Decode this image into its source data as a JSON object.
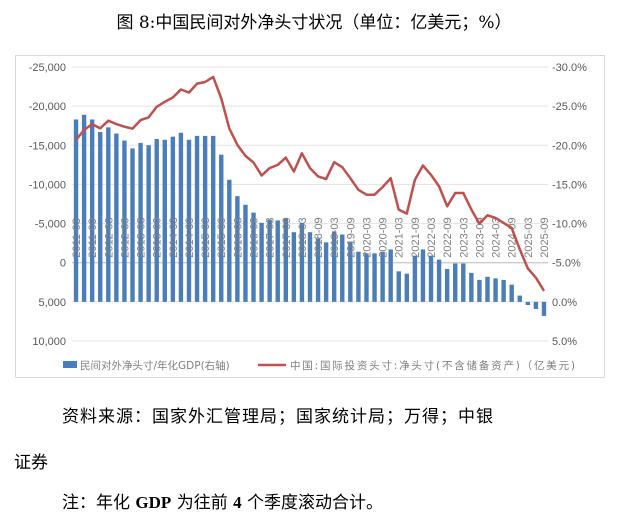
{
  "title": "图 8:中国民间对外净头寸状况（单位：亿美元；%）",
  "source": "资料来源：国家外汇管理局；国家统计局；万得；中银",
  "source_cont": "证券",
  "note": {
    "prefix": "注：年化 ",
    "gdp": "GDP",
    "mid": " 为往前 ",
    "num": "4",
    "suffix": " 个季度滚动合计。"
  },
  "colors": {
    "bar": "#4a7ebb",
    "line": "#c0504d",
    "grid": "#e3e3e3",
    "text": "#595959"
  },
  "chart_data": {
    "type": "bar+line",
    "left_axis": {
      "ticks": [
        "-25,000",
        "-20,000",
        "-15,000",
        "-10,000",
        "-5,000",
        "0",
        "5,000",
        "10,000"
      ],
      "range": [
        -25000,
        10000
      ],
      "inverted": true
    },
    "right_axis": {
      "ticks": [
        "-30.0%",
        "-25.0%",
        "-20.0%",
        "-15.0%",
        "-10.0%",
        "-5.0%",
        "0.0%",
        "5.0%"
      ],
      "range": [
        -30,
        5
      ],
      "inverted": true
    },
    "x_tick_labels": [
      "2011-03",
      "2011-09",
      "2012-03",
      "2012-09",
      "2013-03",
      "2013-09",
      "2014-03",
      "2014-09",
      "2015-03",
      "2015-09",
      "2016-03",
      "2016-09",
      "2017-03",
      "2017-09",
      "2018-03",
      "2018-09",
      "2019-03",
      "2019-09",
      "2020-03",
      "2020-09",
      "2021-03",
      "2021-09",
      "2022-03",
      "2022-09",
      "2023-03",
      "2023-09",
      "2024-03",
      "2024-09",
      "2025-03",
      "2025-09"
    ],
    "grid": true,
    "legend_position": "bottom",
    "series": [
      {
        "name": "民间对外净头寸/年化GDP(右轴)",
        "type": "bar",
        "axis": "right",
        "values": [
          -23.3,
          -23.9,
          -23.3,
          -21.7,
          -22.3,
          -21.5,
          -20.6,
          -19.6,
          -20.3,
          -20.0,
          -20.8,
          -20.7,
          -21.1,
          -21.6,
          -20.7,
          -21.2,
          -21.2,
          -21.2,
          -18.8,
          -15.6,
          -13.5,
          -12.4,
          -11.4,
          -10.1,
          -10.5,
          -10.4,
          -10.7,
          -8.9,
          -10.1,
          -8.9,
          -8.1,
          -7.6,
          -9.0,
          -8.6,
          -7.7,
          -6.4,
          -6.2,
          -6.2,
          -6.4,
          -6.7,
          -3.9,
          -3.6,
          -5.9,
          -6.7,
          -5.9,
          -5.4,
          -4.2,
          -4.9,
          -4.9,
          -3.7,
          -2.8,
          -3.2,
          -3.0,
          -2.8,
          -2.2,
          -0.8,
          0.4,
          0.9,
          1.8
        ]
      },
      {
        "name": "中国:国际投资头寸:净头寸(不含储备资产)（亿美元)",
        "type": "line",
        "axis": "left",
        "values": [
          -15680,
          -16950,
          -17710,
          -17160,
          -18140,
          -17710,
          -17370,
          -17120,
          -18220,
          -18560,
          -19920,
          -20550,
          -21100,
          -22120,
          -21740,
          -22880,
          -23090,
          -23730,
          -20970,
          -17160,
          -15040,
          -13640,
          -12800,
          -11140,
          -12080,
          -12500,
          -13430,
          -11650,
          -13980,
          -12080,
          -11020,
          -10680,
          -12840,
          -12200,
          -10800,
          -9320,
          -8690,
          -8690,
          -9660,
          -10800,
          -6780,
          -6270,
          -10590,
          -12420,
          -11230,
          -9750,
          -7200,
          -8900,
          -8900,
          -6780,
          -5000,
          -6060,
          -5720,
          -5080,
          -4450,
          -1700,
          720,
          1910,
          3600
        ]
      }
    ]
  }
}
